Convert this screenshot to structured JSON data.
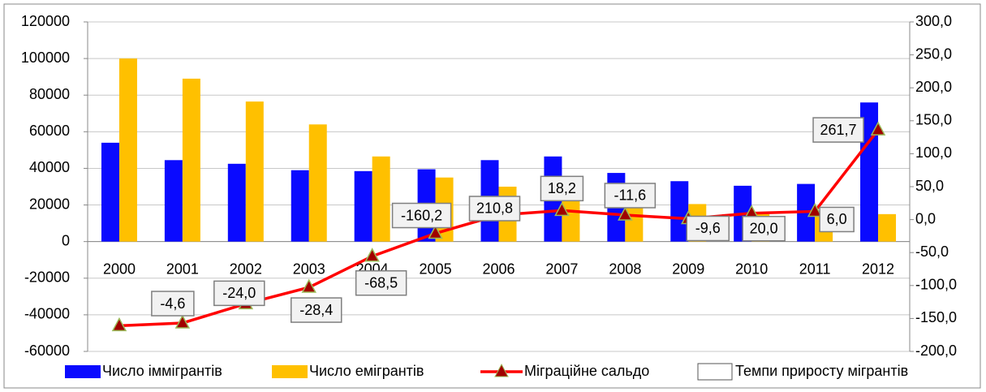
{
  "chart_data": {
    "type": "bar",
    "categories": [
      "2000",
      "2001",
      "2002",
      "2003",
      "2004",
      "2005",
      "2006",
      "2007",
      "2008",
      "2009",
      "2010",
      "2011",
      "2012"
    ],
    "series": [
      {
        "name": "Число іммігрантів",
        "color": "#0a0aff",
        "values": [
          54000,
          44500,
          42500,
          39000,
          38500,
          39500,
          44500,
          46500,
          37500,
          33000,
          30500,
          31500,
          76000
        ]
      },
      {
        "name": "Число емігрантів",
        "color": "#ffc000",
        "values": [
          100000,
          89000,
          76500,
          64000,
          46500,
          35000,
          30000,
          30000,
          23000,
          20500,
          15000,
          15000,
          15000
        ]
      },
      {
        "name": "Міграційне сальдо",
        "type": "line",
        "color": "#ff0000",
        "values": [
          -46000,
          -44500,
          -34000,
          -25000,
          -8000,
          4500,
          14500,
          17000,
          14500,
          12500,
          15500,
          16500,
          61000
        ]
      },
      {
        "name": "Темпи приросту мігрантів",
        "type": "label",
        "axis": "y2",
        "color": "#ffffff",
        "values": [
          null,
          -4.6,
          -24.0,
          -28.4,
          -68.5,
          -160.2,
          210.8,
          18.2,
          -11.6,
          -9.6,
          20.0,
          6.0,
          261.7
        ],
        "value_labels": [
          null,
          "-4,6",
          "-24,0",
          "-28,4",
          "-68,5",
          "-160,2",
          "210,8",
          "18,2",
          "-11,6",
          "-9,6",
          "20,0",
          "6,0",
          "261,7"
        ]
      }
    ],
    "ylim": [
      -60000,
      120000
    ],
    "yticks": [
      -60000,
      -40000,
      -20000,
      0,
      20000,
      40000,
      60000,
      80000,
      100000,
      120000
    ],
    "y2lim": [
      -200,
      300
    ],
    "y2ticks": [
      {
        "value": -200,
        "label": "-200,0"
      },
      {
        "value": -150,
        "label": "-150,0"
      },
      {
        "value": -100,
        "label": "-100,0"
      },
      {
        "value": -50,
        "label": "-50,0"
      },
      {
        "value": 0,
        "label": "0,0"
      },
      {
        "value": 50,
        "label": "50,0"
      },
      {
        "value": 100,
        "label": "100,0"
      },
      {
        "value": 150,
        "label": "150,0"
      },
      {
        "value": 200,
        "label": "200,0"
      },
      {
        "value": 250,
        "label": "250,0"
      },
      {
        "value": 300,
        "label": "300,0"
      }
    ],
    "grid": true,
    "legend": "bottom"
  }
}
